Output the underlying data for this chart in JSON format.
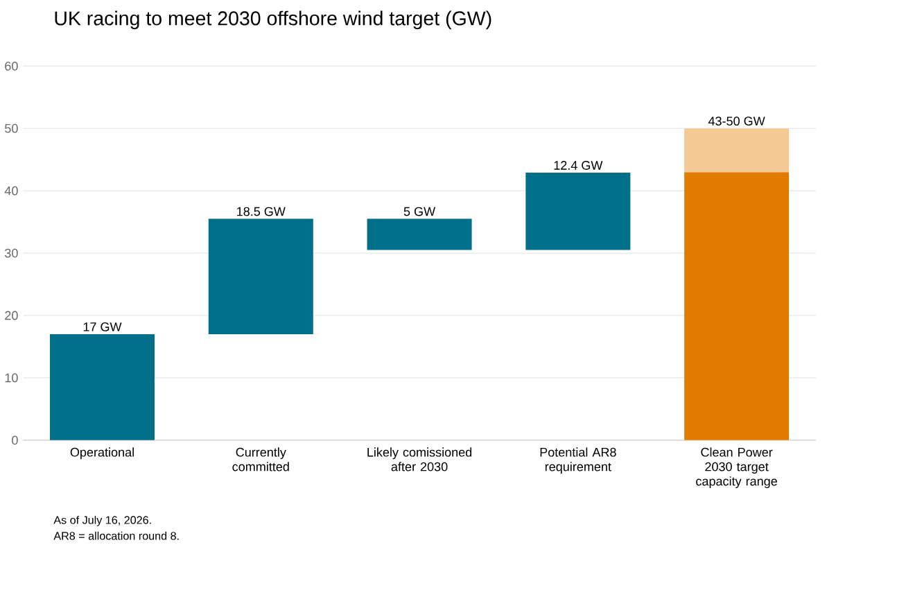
{
  "chart_data": {
    "type": "bar",
    "title": "UK racing to meet 2030 offshore wind target (GW)",
    "categories": [
      "Operational",
      "Currently committed",
      "Likely comissioned after 2030",
      "Potential AR8 requirement",
      "Clean Power 2030 target capacity range"
    ],
    "series": [
      {
        "colors": [
          "#006f8a",
          "#006f8a",
          "#006f8a",
          "#006f8a",
          "#e07b00"
        ],
        "values": [
          17,
          18.5,
          5,
          12.4,
          43
        ],
        "base": [
          0,
          17,
          30.5,
          30.5,
          0
        ],
        "value_labels": [
          "17 GW",
          "18.5 GW",
          "5 GW",
          "12.4 GW",
          null
        ]
      },
      {
        "color": "#f5c993",
        "values": [
          null,
          null,
          null,
          null,
          7
        ],
        "base": [
          null,
          null,
          null,
          null,
          43
        ],
        "value_labels": [
          null,
          null,
          null,
          null,
          "43-50 GW"
        ]
      }
    ],
    "ylim": [
      0,
      60
    ],
    "yticks": [
      0,
      10,
      20,
      30,
      40,
      50,
      60
    ],
    "grid": "y",
    "annotations": [
      "As of July 16, 2026.",
      "AR8 = allocation round 8."
    ]
  }
}
